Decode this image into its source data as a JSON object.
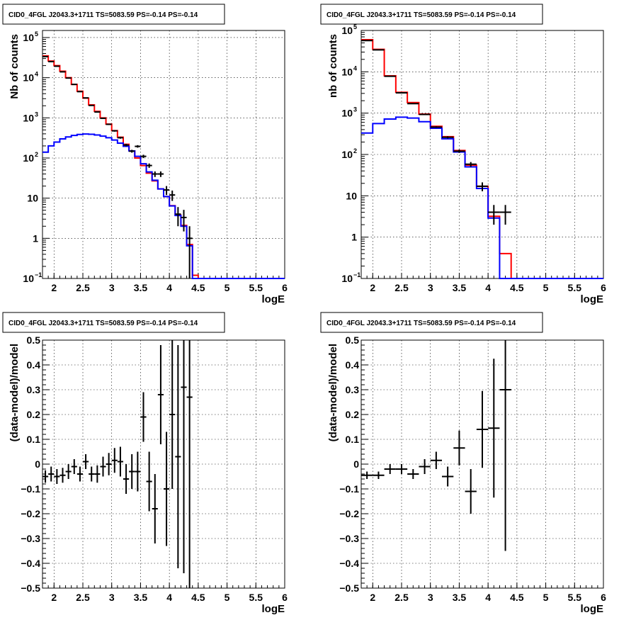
{
  "chart_data": [
    {
      "type": "line",
      "title": "CID0_4FGL J2043.3+1711 TS=5083.59 PS=-0.14 PS=-0.14",
      "xlabel": "logE",
      "ylabel": "Nb of counts",
      "log_y": true,
      "xlim": [
        1.8,
        6
      ],
      "ylim": [
        0.1,
        150000
      ],
      "grid": true,
      "x_ticks": [
        "2",
        "2.5",
        "3",
        "3.5",
        "4",
        "4.5",
        "5",
        "5.5",
        "6"
      ],
      "y_ticks": [
        {
          "label": "10",
          "sup": "−1",
          "value": 0.1
        },
        {
          "label": "1",
          "sup": "",
          "value": 1
        },
        {
          "label": "10",
          "sup": "",
          "value": 10
        },
        {
          "label": "10",
          "sup": "2",
          "value": 100
        },
        {
          "label": "10",
          "sup": "3",
          "value": 1000
        },
        {
          "label": "10",
          "sup": "4",
          "value": 10000
        },
        {
          "label": "10",
          "sup": "5",
          "value": 100000
        }
      ],
      "bin_edges": [
        1.8,
        1.9,
        2.0,
        2.1,
        2.2,
        2.3,
        2.4,
        2.5,
        2.6,
        2.7,
        2.8,
        2.9,
        3.0,
        3.1,
        3.2,
        3.3,
        3.4,
        3.5,
        3.6,
        3.7,
        3.8,
        3.9,
        4.0,
        4.1,
        4.2,
        4.3,
        4.4,
        4.5,
        4.6,
        4.7,
        4.8,
        4.9,
        5.0,
        5.1,
        5.2,
        5.3,
        5.4,
        5.5,
        5.6,
        5.7,
        5.8,
        5.9,
        6.0
      ],
      "series": [
        {
          "color": "#ff0000",
          "style": "step",
          "values": [
            35000,
            26000,
            20000,
            14500,
            10000,
            6800,
            4600,
            3100,
            2100,
            1450,
            1000,
            700,
            480,
            330,
            220,
            150,
            100,
            65,
            42,
            27,
            17,
            11,
            6.5,
            3.8,
            2.1,
            0.7,
            0.12,
            0.1,
            0.1,
            0.1,
            0.1,
            0.1,
            0.1,
            0.1,
            0.1,
            0.1,
            0.1,
            0.1,
            0.1,
            0.1,
            0.1,
            0.1
          ]
        },
        {
          "color": "#0000ff",
          "style": "step",
          "values": [
            140,
            200,
            250,
            300,
            335,
            365,
            385,
            395,
            390,
            375,
            350,
            320,
            280,
            235,
            195,
            150,
            110,
            72,
            45,
            28,
            17,
            11,
            6.4,
            3.7,
            2.0,
            0.65,
            0.1,
            0.1,
            0.1,
            0.1,
            0.1,
            0.1,
            0.1,
            0.1,
            0.1,
            0.1,
            0.1,
            0.1,
            0.1,
            0.1,
            0.1,
            0.1
          ]
        }
      ],
      "points": [
        {
          "x": 1.85,
          "y": 33500
        },
        {
          "x": 1.95,
          "y": 25200
        },
        {
          "x": 2.05,
          "y": 19300
        },
        {
          "x": 2.15,
          "y": 14000
        },
        {
          "x": 2.25,
          "y": 9800
        },
        {
          "x": 2.35,
          "y": 6800
        },
        {
          "x": 2.45,
          "y": 4500
        },
        {
          "x": 2.55,
          "y": 3140
        },
        {
          "x": 2.65,
          "y": 2040
        },
        {
          "x": 2.75,
          "y": 1400
        },
        {
          "x": 2.85,
          "y": 975
        },
        {
          "x": 2.95,
          "y": 690
        },
        {
          "x": 3.05,
          "y": 475
        },
        {
          "x": 3.15,
          "y": 320
        },
        {
          "x": 3.25,
          "y": 210
        },
        {
          "x": 3.35,
          "y": 148
        },
        {
          "x": 3.45,
          "y": 195
        },
        {
          "x": 3.55,
          "y": 110
        },
        {
          "x": 3.65,
          "y": 65
        },
        {
          "x": 3.75,
          "y": 40
        },
        {
          "x": 3.85,
          "y": 40
        },
        {
          "x": 3.95,
          "y": 16
        },
        {
          "x": 4.05,
          "y": 12
        },
        {
          "x": 4.15,
          "y": 4
        },
        {
          "x": 4.25,
          "y": 3.3
        },
        {
          "x": 4.35,
          "y": 1.0
        }
      ]
    },
    {
      "type": "line",
      "title": "CID0_4FGL J2043.3+1711 TS=5083.59 PS=-0.14 PS=-0.14",
      "xlabel": "logE",
      "ylabel": "nb of counts",
      "log_y": true,
      "xlim": [
        1.8,
        6
      ],
      "ylim": [
        0.1,
        100000
      ],
      "grid": true,
      "x_ticks": [
        "2",
        "2.5",
        "3",
        "3.5",
        "4",
        "4.5",
        "5",
        "5.5",
        "6"
      ],
      "y_ticks": [
        {
          "label": "10",
          "sup": "−1",
          "value": 0.1
        },
        {
          "label": "1",
          "sup": "",
          "value": 1
        },
        {
          "label": "10",
          "sup": "",
          "value": 10
        },
        {
          "label": "10",
          "sup": "2",
          "value": 100
        },
        {
          "label": "10",
          "sup": "3",
          "value": 1000
        },
        {
          "label": "10",
          "sup": "4",
          "value": 10000
        },
        {
          "label": "10",
          "sup": "5",
          "value": 100000
        }
      ],
      "bin_edges": [
        1.8,
        2.0,
        2.2,
        2.4,
        2.6,
        2.8,
        3.0,
        3.2,
        3.4,
        3.6,
        3.8,
        4.0,
        4.2,
        4.4,
        4.6,
        4.8,
        5.0,
        5.2,
        5.4,
        5.6,
        5.8,
        6.0
      ],
      "series": [
        {
          "color": "#ff0000",
          "style": "step",
          "values": [
            60000,
            35000,
            8000,
            3200,
            1800,
            950,
            480,
            270,
            125,
            55,
            17,
            3.2,
            0.4,
            0.1,
            0.1,
            0.1,
            0.1,
            0.1,
            0.1,
            0.1,
            0.1
          ]
        },
        {
          "color": "#0000ff",
          "style": "step",
          "values": [
            330,
            560,
            720,
            800,
            760,
            620,
            430,
            240,
            115,
            50,
            15,
            2.9,
            0.1,
            0.1,
            0.1,
            0.1,
            0.1,
            0.1,
            0.1,
            0.1,
            0.1
          ]
        }
      ],
      "points": [
        {
          "x": 1.9,
          "y": 57000
        },
        {
          "x": 2.1,
          "y": 34000
        },
        {
          "x": 2.3,
          "y": 7800
        },
        {
          "x": 2.5,
          "y": 3100
        },
        {
          "x": 2.7,
          "y": 1700
        },
        {
          "x": 2.9,
          "y": 930
        },
        {
          "x": 3.1,
          "y": 460
        },
        {
          "x": 3.3,
          "y": 260
        },
        {
          "x": 3.5,
          "y": 120
        },
        {
          "x": 3.7,
          "y": 58
        },
        {
          "x": 3.9,
          "y": 17
        },
        {
          "x": 4.1,
          "y": 4
        },
        {
          "x": 4.3,
          "y": 4
        }
      ]
    },
    {
      "type": "scatter",
      "title": "CID0_4FGL J2043.3+1711 TS=5083.59 PS=-0.14 PS=-0.14",
      "xlabel": "logE",
      "ylabel": "(data-model)/model",
      "xlim": [
        1.8,
        6
      ],
      "ylim": [
        -0.5,
        0.5
      ],
      "grid": true,
      "x_ticks": [
        "2",
        "2.5",
        "3",
        "3.5",
        "4",
        "4.5",
        "5",
        "5.5",
        "6"
      ],
      "y_ticks": [
        "−0.5",
        "−0.4",
        "−0.3",
        "−0.2",
        "−0.1",
        "0",
        "0.1",
        "0.2",
        "0.3",
        "0.4",
        "0.5"
      ],
      "y_tick_values": [
        -0.5,
        -0.4,
        -0.3,
        -0.2,
        -0.1,
        0,
        0.1,
        0.2,
        0.3,
        0.4,
        0.5
      ],
      "points": [
        {
          "x": 1.85,
          "y": -0.05,
          "e": 0.025
        },
        {
          "x": 1.95,
          "y": -0.04,
          "e": 0.03
        },
        {
          "x": 2.05,
          "y": -0.05,
          "e": 0.03
        },
        {
          "x": 2.15,
          "y": -0.045,
          "e": 0.03
        },
        {
          "x": 2.25,
          "y": -0.03,
          "e": 0.03
        },
        {
          "x": 2.35,
          "y": -0.01,
          "e": 0.03
        },
        {
          "x": 2.45,
          "y": -0.04,
          "e": 0.03
        },
        {
          "x": 2.55,
          "y": 0.01,
          "e": 0.03
        },
        {
          "x": 2.65,
          "y": -0.04,
          "e": 0.03
        },
        {
          "x": 2.75,
          "y": -0.04,
          "e": 0.035
        },
        {
          "x": 2.85,
          "y": -0.01,
          "e": 0.04
        },
        {
          "x": 2.95,
          "y": 0.0,
          "e": 0.045
        },
        {
          "x": 3.05,
          "y": 0.015,
          "e": 0.05
        },
        {
          "x": 3.15,
          "y": 0.01,
          "e": 0.06
        },
        {
          "x": 3.25,
          "y": -0.06,
          "e": 0.06
        },
        {
          "x": 3.35,
          "y": -0.03,
          "e": 0.07
        },
        {
          "x": 3.45,
          "y": -0.03,
          "e": 0.08
        },
        {
          "x": 3.55,
          "y": 0.19,
          "e": 0.1
        },
        {
          "x": 3.65,
          "y": -0.07,
          "e": 0.12
        },
        {
          "x": 3.75,
          "y": -0.18,
          "e": 0.14
        },
        {
          "x": 3.85,
          "y": 0.28,
          "e": 0.2
        },
        {
          "x": 3.95,
          "y": -0.1,
          "e": 0.23
        },
        {
          "x": 4.05,
          "y": 0.2,
          "e": 0.3
        },
        {
          "x": 4.15,
          "y": 0.03,
          "e": 0.45
        },
        {
          "x": 4.25,
          "y": 0.31,
          "e": 0.75
        },
        {
          "x": 4.35,
          "y": 0.27,
          "e": 0.9
        }
      ]
    },
    {
      "type": "scatter",
      "title": "CID0_4FGL J2043.3+1711 TS=5083.59 PS=-0.14 PS=-0.14",
      "xlabel": "logE",
      "ylabel": "(data-model)/model",
      "xlim": [
        1.8,
        6
      ],
      "ylim": [
        -0.5,
        0.5
      ],
      "grid": true,
      "x_ticks": [
        "2",
        "2.5",
        "3",
        "3.5",
        "4",
        "4.5",
        "5",
        "5.5",
        "6"
      ],
      "y_ticks": [
        "−0.5",
        "−0.4",
        "−0.3",
        "−0.2",
        "−0.1",
        "0",
        "0.1",
        "0.2",
        "0.3",
        "0.4",
        "0.5"
      ],
      "y_tick_values": [
        -0.5,
        -0.4,
        -0.3,
        -0.2,
        -0.1,
        0,
        0.1,
        0.2,
        0.3,
        0.4,
        0.5
      ],
      "points": [
        {
          "x": 1.9,
          "y": -0.045,
          "e": 0.015
        },
        {
          "x": 2.1,
          "y": -0.045,
          "e": 0.015
        },
        {
          "x": 2.3,
          "y": -0.02,
          "e": 0.02
        },
        {
          "x": 2.5,
          "y": -0.02,
          "e": 0.02
        },
        {
          "x": 2.7,
          "y": -0.04,
          "e": 0.02
        },
        {
          "x": 2.9,
          "y": -0.01,
          "e": 0.03
        },
        {
          "x": 3.1,
          "y": 0.015,
          "e": 0.035
        },
        {
          "x": 3.3,
          "y": -0.05,
          "e": 0.04
        },
        {
          "x": 3.5,
          "y": 0.065,
          "e": 0.07
        },
        {
          "x": 3.7,
          "y": -0.11,
          "e": 0.09
        },
        {
          "x": 3.9,
          "y": 0.14,
          "e": 0.155
        },
        {
          "x": 4.1,
          "y": 0.145,
          "e": 0.28
        },
        {
          "x": 4.3,
          "y": 0.3,
          "e": 0.65
        }
      ]
    }
  ]
}
